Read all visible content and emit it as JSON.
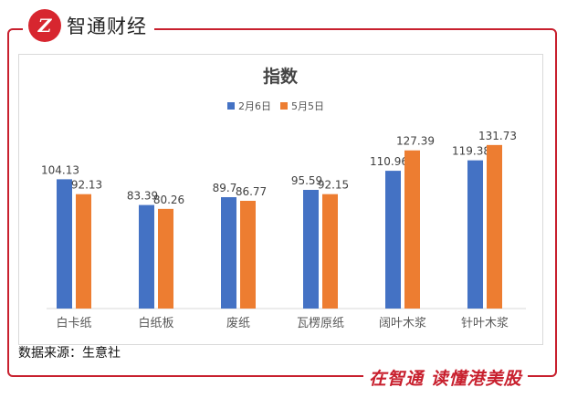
{
  "brand": {
    "logo_letter": "Z",
    "name": "智通财经",
    "slogan": "在智通 读懂港美股",
    "color": "#c8202e"
  },
  "source": "数据来源：生意社",
  "chart_data": {
    "type": "bar",
    "title": "指数",
    "categories": [
      "白卡纸",
      "白纸板",
      "废纸",
      "瓦楞原纸",
      "阔叶木浆",
      "针叶木浆"
    ],
    "series": [
      {
        "name": "2月6日",
        "color": "#4472c4",
        "values": [
          104.13,
          83.39,
          89.7,
          95.59,
          110.96,
          119.38
        ]
      },
      {
        "name": "5月5日",
        "color": "#ed7d31",
        "values": [
          92.13,
          80.26,
          86.77,
          92.15,
          127.39,
          131.73
        ]
      }
    ],
    "ylim": [
      0,
      135
    ],
    "legend": "top",
    "grid": false
  }
}
